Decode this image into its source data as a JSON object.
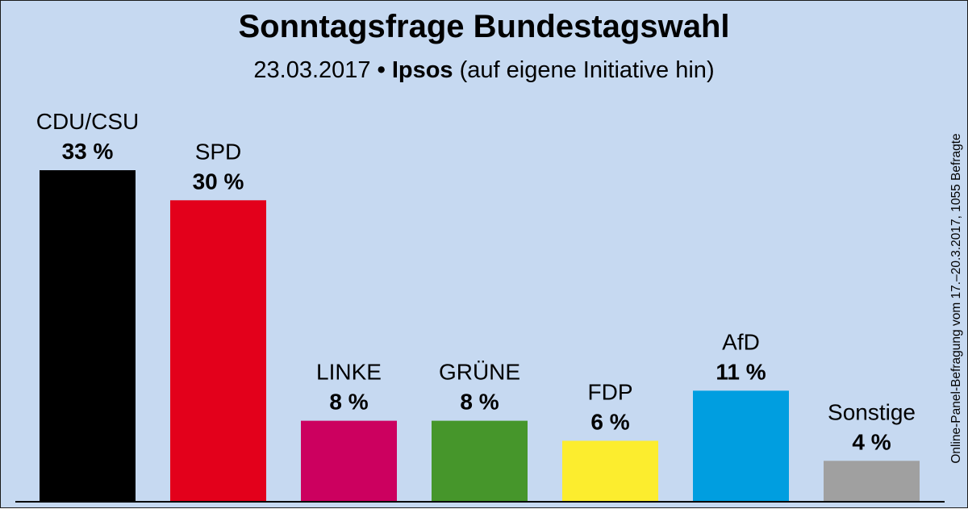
{
  "header": {
    "title": "Sonntagsfrage Bundestagswahl",
    "subtitle_date": "23.03.2017",
    "subtitle_sep": "•",
    "subtitle_institute": "Ipsos",
    "subtitle_note": "(auf eigene Initiative hin)"
  },
  "side_note": "Online-Panel-Befragung vom 17.–20.3.2017, 1055 Befragte",
  "chart_data": {
    "type": "bar",
    "title": "Sonntagsfrage Bundestagswahl",
    "xlabel": "",
    "ylabel": "",
    "ylim": [
      0,
      33
    ],
    "grid": false,
    "categories": [
      "CDU/CSU",
      "SPD",
      "LINKE",
      "GRÜNE",
      "FDP",
      "AfD",
      "Sonstige"
    ],
    "values": [
      33,
      30,
      8,
      8,
      6,
      11,
      4
    ],
    "value_labels": [
      "33 %",
      "30 %",
      "8 %",
      "8 %",
      "6 %",
      "11 %",
      "4 %"
    ],
    "colors": [
      "#000000",
      "#e3001b",
      "#cc005f",
      "#46962b",
      "#fced2e",
      "#009ee0",
      "#a0a0a0"
    ]
  }
}
